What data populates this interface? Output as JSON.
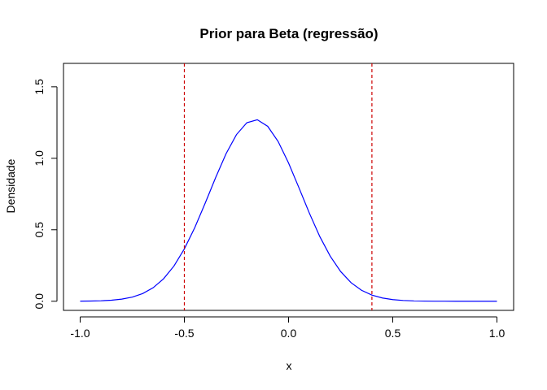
{
  "chart_data": {
    "type": "line",
    "title": "Prior para Beta (regressão)",
    "xlabel": "x",
    "ylabel": "Densidade",
    "xlim": [
      -1.0,
      1.0
    ],
    "ylim": [
      0.0,
      1.6
    ],
    "xticks": [
      -1.0,
      -0.5,
      0.0,
      0.5,
      1.0
    ],
    "xtick_labels": [
      "-1.0",
      "-0.5",
      "0.0",
      "0.5",
      "1.0"
    ],
    "yticks": [
      0.0,
      0.5,
      1.0,
      1.5
    ],
    "ytick_labels": [
      "0.0",
      "0.5",
      "1.0",
      "1.5"
    ],
    "grid": false,
    "series": [
      {
        "color": "#0000ff",
        "x": [
          -1.0,
          -0.95,
          -0.9,
          -0.85,
          -0.8,
          -0.75,
          -0.7,
          -0.65,
          -0.6,
          -0.55,
          -0.5,
          -0.45,
          -0.4,
          -0.35,
          -0.3,
          -0.25,
          -0.2,
          -0.15,
          -0.1,
          -0.05,
          0.0,
          0.05,
          0.1,
          0.15,
          0.2,
          0.25,
          0.3,
          0.35,
          0.4,
          0.45,
          0.5,
          0.55,
          0.6,
          0.65,
          0.7,
          0.75,
          0.8,
          0.85,
          0.9,
          0.95,
          1.0
        ],
        "y": [
          0.0005,
          0.0013,
          0.0032,
          0.007,
          0.0147,
          0.0288,
          0.0537,
          0.0943,
          0.1568,
          0.2461,
          0.3663,
          0.5152,
          0.6861,
          0.8647,
          1.0318,
          1.1657,
          1.2488,
          1.2694,
          1.2236,
          1.1176,
          0.9672,
          0.7933,
          0.6157,
          0.4521,
          0.315,
          0.2076,
          0.1295,
          0.0765,
          0.0428,
          0.0227,
          0.0113,
          0.0054,
          0.0024,
          0.001,
          0.0004,
          0.0002,
          0.0001,
          0.0,
          0.0,
          0.0,
          0.0
        ]
      }
    ],
    "vlines": [
      {
        "x": -0.5,
        "color": "#cc0000",
        "style": "dashed"
      },
      {
        "x": 0.4,
        "color": "#cc0000",
        "style": "dashed"
      }
    ]
  }
}
